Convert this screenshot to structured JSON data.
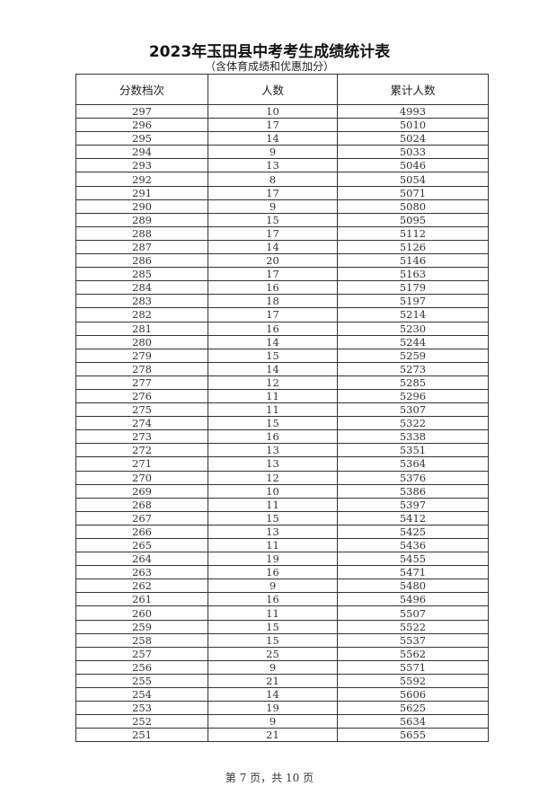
{
  "title": "2023年玉田县中考考生成绩统计表",
  "subtitle": "（含体育成绩和优惠加分）",
  "table": {
    "headers": [
      "分数档次",
      "人数",
      "累计人数"
    ],
    "rows": [
      [
        "297",
        "10",
        "4993"
      ],
      [
        "296",
        "17",
        "5010"
      ],
      [
        "295",
        "14",
        "5024"
      ],
      [
        "294",
        "9",
        "5033"
      ],
      [
        "293",
        "13",
        "5046"
      ],
      [
        "292",
        "8",
        "5054"
      ],
      [
        "291",
        "17",
        "5071"
      ],
      [
        "290",
        "9",
        "5080"
      ],
      [
        "289",
        "15",
        "5095"
      ],
      [
        "288",
        "17",
        "5112"
      ],
      [
        "287",
        "14",
        "5126"
      ],
      [
        "286",
        "20",
        "5146"
      ],
      [
        "285",
        "17",
        "5163"
      ],
      [
        "284",
        "16",
        "5179"
      ],
      [
        "283",
        "18",
        "5197"
      ],
      [
        "282",
        "17",
        "5214"
      ],
      [
        "281",
        "16",
        "5230"
      ],
      [
        "280",
        "14",
        "5244"
      ],
      [
        "279",
        "15",
        "5259"
      ],
      [
        "278",
        "14",
        "5273"
      ],
      [
        "277",
        "12",
        "5285"
      ],
      [
        "276",
        "11",
        "5296"
      ],
      [
        "275",
        "11",
        "5307"
      ],
      [
        "274",
        "15",
        "5322"
      ],
      [
        "273",
        "16",
        "5338"
      ],
      [
        "272",
        "13",
        "5351"
      ],
      [
        "271",
        "13",
        "5364"
      ],
      [
        "270",
        "12",
        "5376"
      ],
      [
        "269",
        "10",
        "5386"
      ],
      [
        "268",
        "11",
        "5397"
      ],
      [
        "267",
        "15",
        "5412"
      ],
      [
        "266",
        "13",
        "5425"
      ],
      [
        "265",
        "11",
        "5436"
      ],
      [
        "264",
        "19",
        "5455"
      ],
      [
        "263",
        "16",
        "5471"
      ],
      [
        "262",
        "9",
        "5480"
      ],
      [
        "261",
        "16",
        "5496"
      ],
      [
        "260",
        "11",
        "5507"
      ],
      [
        "259",
        "15",
        "5522"
      ],
      [
        "258",
        "15",
        "5537"
      ],
      [
        "257",
        "25",
        "5562"
      ],
      [
        "256",
        "9",
        "5571"
      ],
      [
        "255",
        "21",
        "5592"
      ],
      [
        "254",
        "14",
        "5606"
      ],
      [
        "253",
        "19",
        "5625"
      ],
      [
        "252",
        "9",
        "5634"
      ],
      [
        "251",
        "21",
        "5655"
      ]
    ]
  },
  "footer": "第 7 页，共 10 页"
}
